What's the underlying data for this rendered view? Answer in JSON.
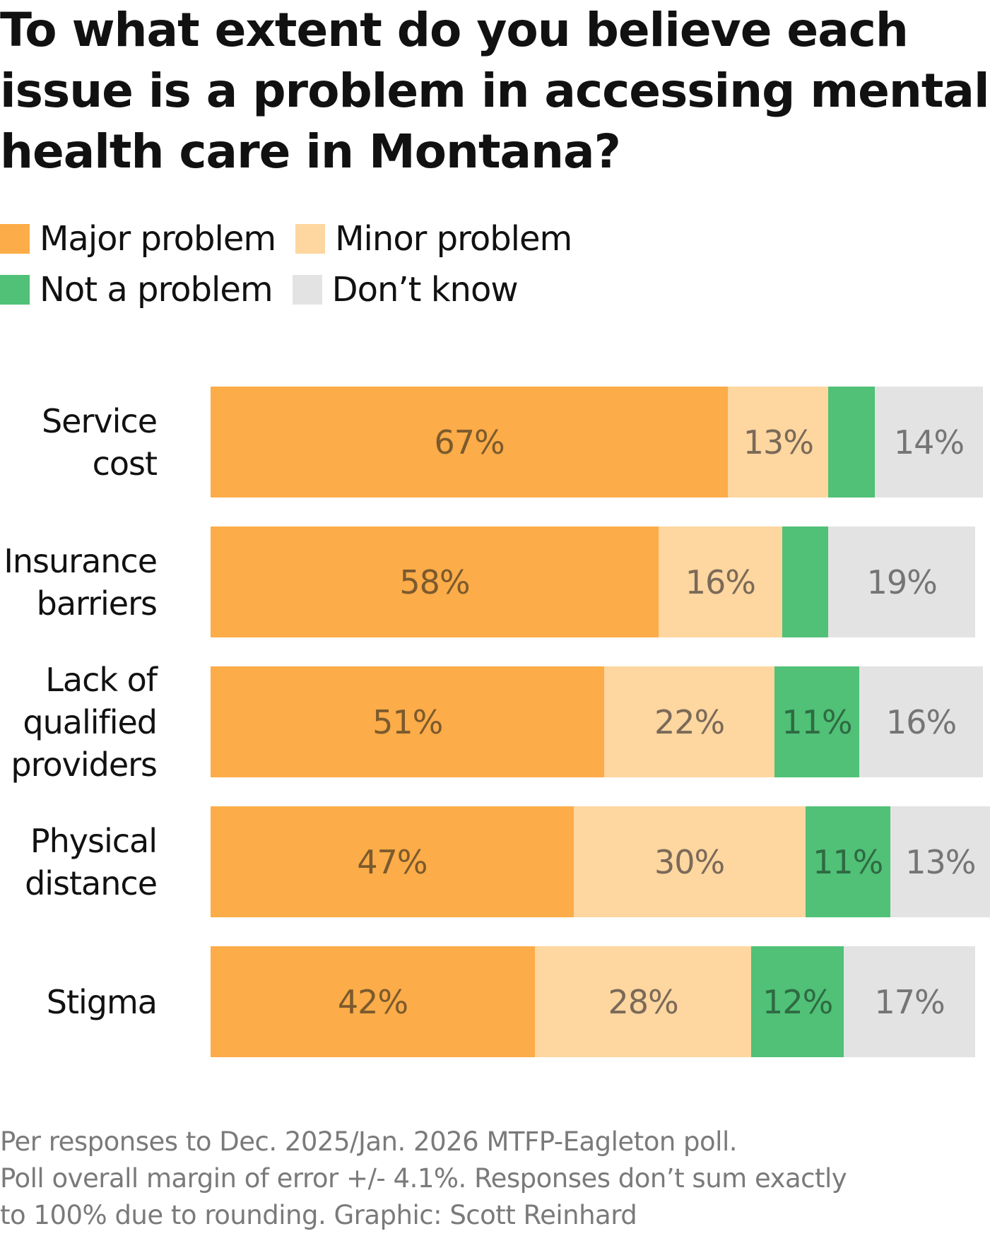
{
  "title": "To what extent do you believe each issue is a problem in accessing mental health care in Montana?",
  "legend": [
    {
      "label": "Major problem",
      "color": "#fcac48"
    },
    {
      "label": "Minor problem",
      "color": "#fed6a0"
    },
    {
      "label": "Not a problem",
      "color": "#50c177"
    },
    {
      "label": "Don’t know",
      "color": "#e3e3e3"
    }
  ],
  "footer": {
    "line1": "Per responses to Dec. 2025/Jan. 2026 MTFP-Eagleton poll.",
    "line2": "Poll overall margin of error +/- 4.1%. Responses don’t sum exactly",
    "line3": "to 100% due to rounding. Graphic: Scott Reinhard"
  },
  "chart_data": {
    "type": "bar",
    "orientation": "horizontal",
    "stacked": true,
    "title": "To what extent do you believe each issue is a problem in accessing mental health care in Montana?",
    "xlabel": "",
    "ylabel": "",
    "xlim": [
      0,
      100
    ],
    "grid": false,
    "legend_position": "top-left",
    "categories": [
      {
        "lines": [
          "Service",
          "cost"
        ],
        "name": "Service cost"
      },
      {
        "lines": [
          "Insurance",
          "barriers"
        ],
        "name": "Insurance barriers"
      },
      {
        "lines": [
          "Lack of",
          "qualified",
          "providers"
        ],
        "name": "Lack of qualified providers"
      },
      {
        "lines": [
          "Physical",
          "distance"
        ],
        "name": "Physical distance"
      },
      {
        "lines": [
          "Stigma"
        ],
        "name": "Stigma"
      }
    ],
    "series": [
      {
        "name": "Major problem",
        "color": "#fcac48",
        "text_color": "#7b5a2e",
        "values": [
          67,
          58,
          51,
          47,
          42
        ],
        "labels": [
          "67%",
          "58%",
          "51%",
          "47%",
          "42%"
        ]
      },
      {
        "name": "Minor problem",
        "color": "#fed6a0",
        "text_color": "#7a6a58",
        "values": [
          13,
          16,
          22,
          30,
          28
        ],
        "labels": [
          "13%",
          "16%",
          "22%",
          "30%",
          "28%"
        ]
      },
      {
        "name": "Not a problem",
        "color": "#50c177",
        "text_color": "#2f6a42",
        "values": [
          6,
          6,
          11,
          11,
          12
        ],
        "labels": [
          "",
          "",
          "11%",
          "11%",
          "12%"
        ]
      },
      {
        "name": "Don’t know",
        "color": "#e3e3e3",
        "text_color": "#757575",
        "values": [
          14,
          19,
          16,
          13,
          17
        ],
        "labels": [
          "14%",
          "19%",
          "16%",
          "13%",
          "17%"
        ]
      }
    ]
  }
}
